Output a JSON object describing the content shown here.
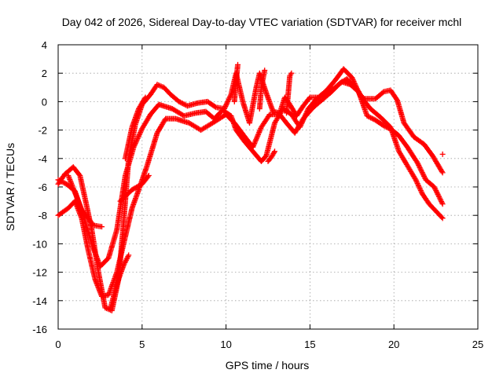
{
  "chart_data": {
    "type": "scatter",
    "title": "Day 042 of 2026, Sidereal Day-to-day VTEC variation (SDTVAR) for receiver mchl",
    "xlabel": "GPS time / hours",
    "ylabel": "SDTVAR / TECUs",
    "xlim": [
      0,
      25
    ],
    "ylim": [
      -16,
      4
    ],
    "xticks": [
      0,
      5,
      10,
      15,
      20,
      25
    ],
    "yticks": [
      -16,
      -14,
      -12,
      -10,
      -8,
      -6,
      -4,
      -2,
      0,
      2,
      4
    ],
    "grid": true,
    "marker": "+",
    "series_color": "#ff0000",
    "series": [
      {
        "name": "trace-1",
        "x": [
          0.0,
          0.6,
          1.0,
          1.4,
          1.8,
          2.2,
          2.6,
          3.0,
          3.5,
          4.0,
          4.4,
          4.8,
          5.3,
          5.9,
          6.4,
          7.0,
          7.8,
          8.5,
          9.2,
          10.0,
          10.5,
          11.2,
          11.6,
          12.1,
          12.6,
          13.2,
          13.6,
          14.1,
          14.6,
          15.2,
          15.7,
          16.2,
          16.8,
          17.2,
          17.6,
          18.2,
          18.9,
          19.4,
          19.8,
          20.2,
          20.6,
          21.2,
          21.8,
          22.3,
          22.9
        ],
        "y": [
          -8.0,
          -7.5,
          -7.0,
          -8.2,
          -10.5,
          -12.5,
          -13.7,
          -13.6,
          -12.0,
          -9.5,
          -7.5,
          -6.2,
          -4.5,
          -2.2,
          -1.2,
          -1.2,
          -1.5,
          -2.0,
          -1.5,
          -0.9,
          -1.5,
          -2.6,
          -3.2,
          -1.8,
          -0.9,
          -0.9,
          -1.5,
          -2.2,
          -1.2,
          -0.4,
          0.1,
          0.6,
          1.3,
          1.6,
          1.1,
          0.2,
          0.2,
          0.7,
          0.8,
          0.1,
          -1.5,
          -2.5,
          -3.0,
          -3.8,
          -5.0
        ]
      },
      {
        "name": "trace-2",
        "x": [
          0.0,
          0.5,
          1.0,
          1.5,
          2.0,
          2.5,
          3.0,
          3.5,
          4.0,
          4.5,
          5.0,
          5.5,
          6.0,
          6.8,
          7.5,
          8.2,
          8.8,
          9.3,
          9.8,
          10.3,
          10.6,
          11.1,
          11.6,
          12.1,
          12.4,
          12.9,
          13.4,
          13.9,
          14.4,
          14.9,
          15.4,
          15.9,
          16.4,
          16.9,
          17.4,
          17.9,
          18.4,
          18.9,
          19.4,
          19.9,
          20.3,
          20.8,
          21.4,
          21.9,
          22.4,
          22.9
        ],
        "y": [
          -5.5,
          -5.8,
          -6.3,
          -8.0,
          -10.0,
          -11.6,
          -11.0,
          -9.0,
          -5.2,
          -3.2,
          -1.9,
          -0.9,
          -0.2,
          -0.5,
          -1.0,
          -0.8,
          -0.7,
          -1.2,
          -0.6,
          -1.0,
          -2.0,
          -2.8,
          -3.5,
          -4.2,
          -3.8,
          -1.5,
          -0.5,
          -0.9,
          -1.8,
          -0.5,
          0.2,
          0.5,
          0.9,
          1.4,
          1.2,
          0.7,
          -1.0,
          -1.3,
          -1.7,
          -2.0,
          -2.4,
          -3.2,
          -4.3,
          -5.5,
          -6.0,
          -7.2
        ]
      },
      {
        "name": "trace-3",
        "x": [
          0.0,
          0.4,
          0.9,
          1.3,
          1.6,
          2.0,
          2.4,
          2.8,
          3.2,
          3.6,
          3.9,
          4.2,
          4.6,
          5.0,
          5.5,
          5.9,
          6.3,
          6.7,
          7.2,
          7.7,
          8.3,
          8.9,
          9.4,
          9.9,
          10.3,
          10.6,
          11.0,
          11.4,
          11.8,
          12.0,
          12.4,
          12.8,
          13.2,
          13.5,
          13.8,
          14.2,
          14.6,
          15.0,
          15.5,
          16.0,
          16.5,
          17.0,
          17.5,
          18.0,
          18.6,
          19.2,
          19.8,
          20.3,
          20.8,
          21.3,
          21.7,
          22.1,
          22.5,
          22.9
        ],
        "y": [
          -5.8,
          -5.1,
          -4.6,
          -5.2,
          -6.8,
          -9.0,
          -12.0,
          -14.5,
          -14.7,
          -12.5,
          -8.5,
          -4.0,
          -1.6,
          -0.2,
          0.5,
          1.2,
          1.0,
          0.5,
          0.0,
          -0.3,
          -0.1,
          0.0,
          -0.4,
          -0.5,
          0.5,
          2.0,
          0.0,
          -1.5,
          1.0,
          2.0,
          0.6,
          -0.7,
          -0.8,
          0.3,
          -0.2,
          -1.0,
          -0.3,
          0.3,
          0.3,
          0.8,
          1.5,
          2.3,
          1.7,
          0.4,
          -0.5,
          -1.1,
          -1.8,
          -3.5,
          -4.5,
          -5.5,
          -6.5,
          -7.2,
          -7.7,
          -8.2
        ]
      }
    ],
    "marker_paths": [
      {
        "x": [
          0.6,
          1.4,
          2.1,
          2.6
        ],
        "y": [
          -5.2,
          -7.6,
          -8.7,
          -8.8
        ]
      },
      {
        "x": [
          3.1,
          3.5,
          3.9,
          4.2
        ],
        "y": [
          -14.6,
          -12.8,
          -11.5,
          -10.8
        ]
      },
      {
        "x": [
          3.7,
          4.4,
          5.0,
          5.4
        ],
        "y": [
          -7.0,
          -6.2,
          -5.8,
          -5.2
        ]
      },
      {
        "x": [
          4.0,
          4.4,
          4.8,
          5.2
        ],
        "y": [
          -4.0,
          -1.8,
          -0.5,
          0.3
        ]
      },
      {
        "x": [
          10.5,
          10.6,
          10.7
        ],
        "y": [
          0.0,
          1.5,
          2.6
        ]
      },
      {
        "x": [
          12.0,
          12.1,
          12.3
        ],
        "y": [
          -0.5,
          1.0,
          2.2
        ]
      },
      {
        "x": [
          13.6,
          13.7,
          13.8,
          13.9
        ],
        "y": [
          -0.8,
          0.5,
          1.8,
          2.0
        ]
      },
      {
        "x": [
          12.5,
          12.7,
          12.9
        ],
        "y": [
          -4.2,
          -3.9,
          -3.5
        ]
      },
      {
        "x": [
          22.9
        ],
        "y": [
          -3.7
        ]
      }
    ]
  }
}
